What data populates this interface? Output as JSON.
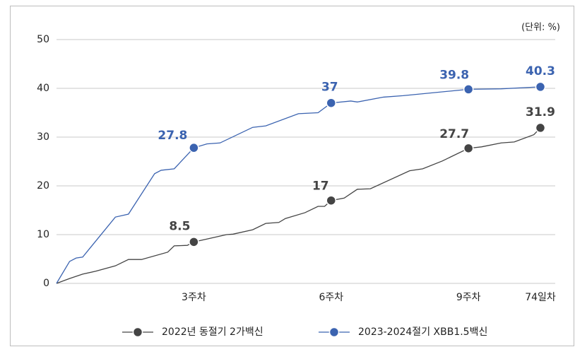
{
  "chart_data": {
    "type": "line",
    "unit_label": "(단위: %)",
    "xlim": [
      0,
      74
    ],
    "xticks": [
      {
        "value": 21,
        "label": "3주차"
      },
      {
        "value": 42,
        "label": "6주차"
      },
      {
        "value": 63,
        "label": "9주차"
      },
      {
        "value": 74,
        "label": "74일차"
      }
    ],
    "ylim": [
      0,
      50
    ],
    "yticks": [
      0,
      10,
      20,
      30,
      40,
      50
    ],
    "grid": true,
    "legend": "bottom",
    "series": [
      {
        "name": "2022년 동절기 2가백신",
        "color": "#444444",
        "x": [
          0,
          2,
          4,
          6,
          9,
          11,
          13,
          17,
          18,
          20,
          21,
          23,
          26,
          27,
          30,
          32,
          34,
          35,
          38,
          40,
          41,
          42,
          44,
          46,
          48,
          54,
          56,
          59,
          63,
          65,
          68,
          70,
          73,
          74
        ],
        "values": [
          0,
          1,
          1.9,
          2.5,
          3.6,
          4.9,
          4.9,
          6.4,
          7.7,
          7.8,
          8.5,
          9.1,
          10,
          10.1,
          11,
          12.3,
          12.5,
          13.3,
          14.5,
          15.8,
          15.8,
          17,
          17.5,
          19.3,
          19.4,
          23.1,
          23.5,
          25.1,
          27.7,
          28,
          28.8,
          29,
          30.5,
          31.9
        ],
        "points": {
          "x": [
            21,
            42,
            63,
            74
          ],
          "values": [
            8.5,
            17,
            27.7,
            31.9
          ]
        }
      },
      {
        "name": "2023-2024절기 XBB1.5백신",
        "color": "#3b63b0",
        "x": [
          0,
          2,
          3,
          4,
          9,
          11,
          15,
          16,
          18,
          21,
          23,
          25,
          30,
          32,
          37,
          40,
          42,
          45,
          46,
          50,
          53,
          63,
          68,
          74
        ],
        "values": [
          0,
          4.5,
          5.2,
          5.4,
          13.6,
          14.2,
          22.5,
          23.2,
          23.5,
          27.8,
          28.6,
          28.8,
          32,
          32.3,
          34.8,
          35,
          37,
          37.4,
          37.2,
          38.2,
          38.5,
          39.8,
          39.9,
          40.3
        ],
        "points": {
          "x": [
            21,
            42,
            63,
            74
          ],
          "values": [
            27.8,
            37,
            39.8,
            40.3
          ]
        }
      }
    ]
  }
}
